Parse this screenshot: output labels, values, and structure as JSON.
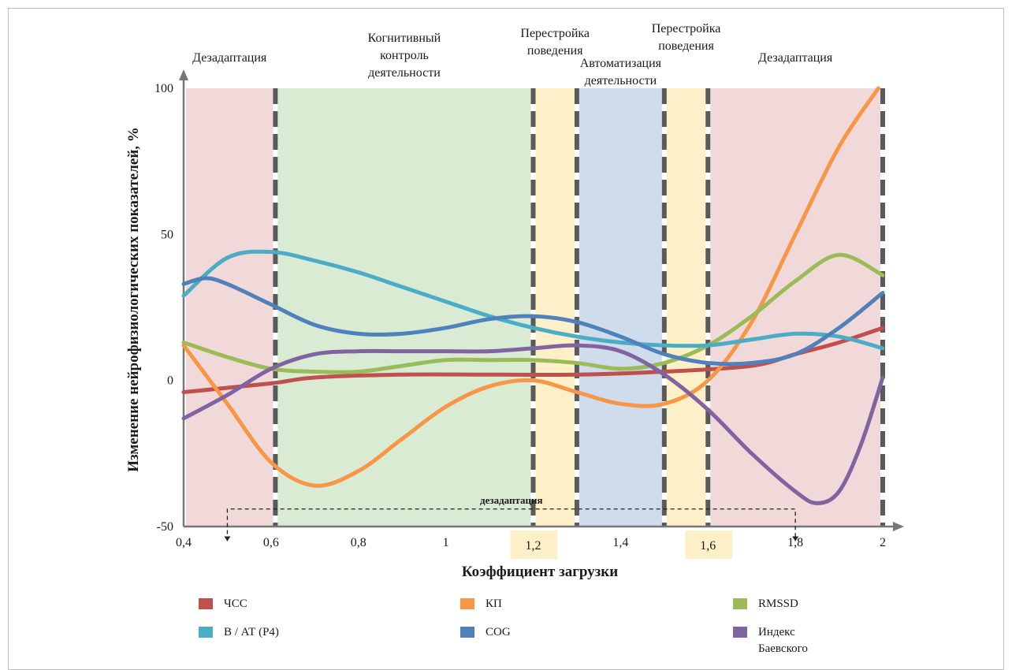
{
  "chart_data": {
    "type": "line",
    "xlabel": "Коэффициент загрузки",
    "ylabel": "Изменение нейрофизиологических показателей, %",
    "xlim": [
      0.4,
      2.0
    ],
    "ylim": [
      -50,
      100
    ],
    "x_ticks": [
      "0,4",
      "0,6",
      "0,8",
      "1",
      "1,2",
      "1,4",
      "1,6",
      "1,8",
      "2"
    ],
    "x_tick_values": [
      0.4,
      0.6,
      0.8,
      1.0,
      1.2,
      1.4,
      1.6,
      1.8,
      2.0
    ],
    "highlighted_ticks": [
      "1,2",
      "1,6"
    ],
    "y_ticks": [
      "100",
      "50",
      "0",
      "-50"
    ],
    "y_tick_values": [
      100,
      50,
      0,
      -50
    ],
    "zones": [
      {
        "label": "Дезадаптация",
        "from": 0.4,
        "to": 0.61,
        "color": "#f2d9d9"
      },
      {
        "label": "Когнитивный\nконтроль\nдеятельности",
        "from": 0.61,
        "to": 1.2,
        "color": "#d9ebd3"
      },
      {
        "label": "Перестройка\nповедения",
        "from": 1.2,
        "to": 1.3,
        "color": "#fdf0c8"
      },
      {
        "label": "Автоматизация\nдеятельности",
        "from": 1.3,
        "to": 1.5,
        "color": "#cfdcec"
      },
      {
        "label": "Перестройка\nповедения",
        "from": 1.5,
        "to": 1.6,
        "color": "#fdf0c8"
      },
      {
        "label": "Дезадаптация",
        "from": 1.6,
        "to": 2.0,
        "color": "#f2d9d9"
      }
    ],
    "boundaries": [
      0.61,
      1.2,
      1.3,
      1.5,
      1.6,
      2.0
    ],
    "annotation": {
      "label": "дезадаптация",
      "y": -44,
      "x_from": 0.5,
      "x_to": 1.8,
      "arrow_to_y": -55
    },
    "series": [
      {
        "name": "ЧСС",
        "color": "#c0504d",
        "x": [
          0.4,
          0.6,
          0.7,
          0.9,
          1.1,
          1.3,
          1.5,
          1.7,
          1.8,
          1.9,
          2.0
        ],
        "y": [
          -4,
          -1,
          1,
          2,
          2,
          2,
          3,
          5,
          9,
          13,
          18
        ]
      },
      {
        "name": "КП",
        "color": "#f79646",
        "x": [
          0.4,
          0.5,
          0.6,
          0.7,
          0.8,
          0.9,
          1.0,
          1.1,
          1.2,
          1.3,
          1.4,
          1.5,
          1.6,
          1.7,
          1.8,
          1.9,
          1.99
        ],
        "y": [
          12,
          -8,
          -28,
          -36,
          -31,
          -20,
          -9,
          -2,
          0,
          -4,
          -8,
          -8,
          0,
          20,
          50,
          80,
          100
        ]
      },
      {
        "name": "RMSSD",
        "color": "#9bbb59",
        "x": [
          0.4,
          0.5,
          0.6,
          0.7,
          0.8,
          0.9,
          1.0,
          1.1,
          1.2,
          1.3,
          1.4,
          1.5,
          1.6,
          1.7,
          1.8,
          1.9,
          2.0
        ],
        "y": [
          13,
          8,
          4,
          3,
          3,
          5,
          7,
          7,
          7,
          6,
          4,
          6,
          12,
          22,
          34,
          43,
          36
        ]
      },
      {
        "name": "В / АТ (Р4)",
        "color": "#4bacc6",
        "x": [
          0.4,
          0.5,
          0.6,
          0.7,
          0.8,
          0.9,
          1.0,
          1.1,
          1.2,
          1.3,
          1.4,
          1.5,
          1.6,
          1.7,
          1.8,
          1.9,
          2.0
        ],
        "y": [
          29,
          42,
          44,
          41,
          37,
          32,
          27,
          22,
          18,
          15,
          13,
          12,
          12,
          14,
          16,
          15,
          11
        ]
      },
      {
        "name": "COG",
        "color": "#4f81bd",
        "x": [
          0.4,
          0.45,
          0.5,
          0.6,
          0.7,
          0.8,
          0.9,
          1.0,
          1.1,
          1.2,
          1.3,
          1.4,
          1.5,
          1.6,
          1.7,
          1.8,
          1.9,
          2.0
        ],
        "y": [
          33,
          35,
          33,
          26,
          19,
          16,
          16,
          18,
          21,
          22,
          20,
          15,
          9,
          6,
          6,
          9,
          18,
          30
        ]
      },
      {
        "name": "Индекс\nБаевского",
        "color": "#8064a2",
        "x": [
          0.4,
          0.5,
          0.6,
          0.7,
          0.8,
          0.9,
          1.0,
          1.1,
          1.2,
          1.3,
          1.4,
          1.5,
          1.6,
          1.7,
          1.8,
          1.85,
          1.9,
          1.95,
          2.0
        ],
        "y": [
          -13,
          -5,
          4,
          9,
          10,
          10,
          10,
          10,
          11,
          12,
          10,
          2,
          -10,
          -25,
          -38,
          -42,
          -38,
          -22,
          1
        ]
      }
    ],
    "legend_order": [
      [
        "ЧСС",
        "КП",
        "RMSSD"
      ],
      [
        "В / АТ (Р4)",
        "COG",
        "Индекс\nБаевского"
      ]
    ]
  }
}
